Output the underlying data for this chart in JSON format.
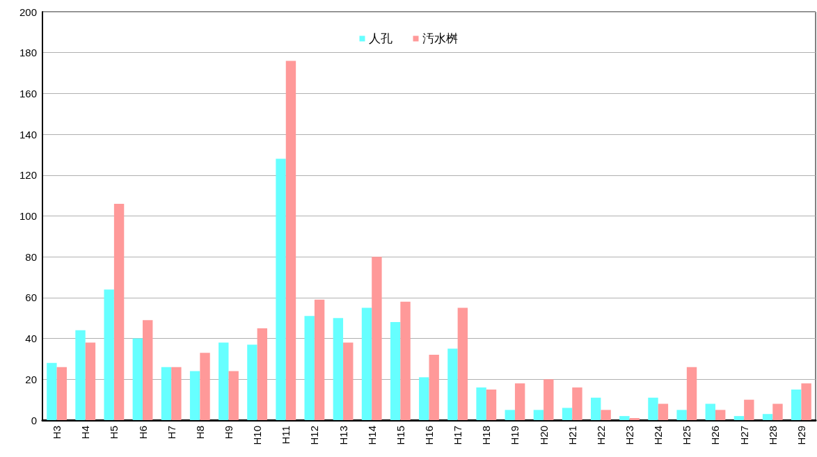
{
  "chart_data": {
    "type": "bar",
    "categories": [
      "H3",
      "H4",
      "H5",
      "H6",
      "H7",
      "H8",
      "H9",
      "H10",
      "H11",
      "H12",
      "H13",
      "H14",
      "H15",
      "H16",
      "H17",
      "H18",
      "H19",
      "H20",
      "H21",
      "H22",
      "H23",
      "H24",
      "H25",
      "H26",
      "H27",
      "H28",
      "H29"
    ],
    "series": [
      {
        "name": "人孔",
        "color": "#66ffff",
        "values": [
          28,
          44,
          64,
          40,
          26,
          24,
          38,
          37,
          128,
          51,
          50,
          55,
          48,
          21,
          35,
          16,
          5,
          5,
          6,
          11,
          2,
          11,
          5,
          8,
          2,
          3,
          15
        ]
      },
      {
        "name": "汚水桝",
        "color": "#ff9999",
        "values": [
          26,
          38,
          106,
          49,
          26,
          33,
          24,
          45,
          176,
          59,
          38,
          80,
          58,
          32,
          55,
          15,
          18,
          20,
          16,
          5,
          1,
          8,
          26,
          5,
          10,
          8,
          18
        ]
      }
    ],
    "ylim": [
      0,
      200
    ],
    "yticks": [
      0,
      20,
      40,
      60,
      80,
      100,
      120,
      140,
      160,
      180,
      200
    ],
    "grid": "y",
    "legend": "top"
  }
}
